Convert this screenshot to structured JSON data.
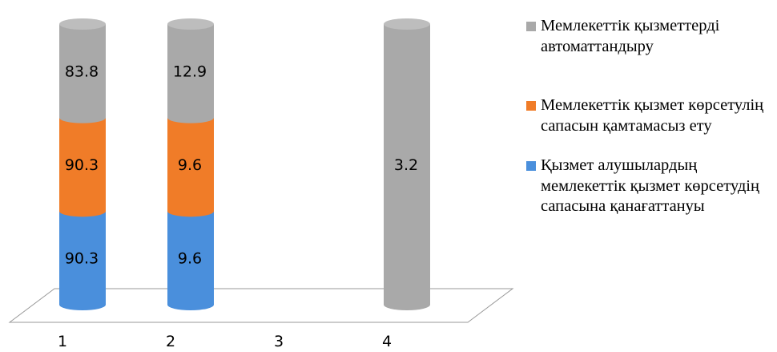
{
  "chart_data": {
    "type": "bar",
    "stacked": true,
    "categories": [
      "1",
      "2",
      "3",
      "4"
    ],
    "series": [
      {
        "name": "Қызмет алушылардың мемлекеттік қызмет көрсетудің сапасына қанағаттануы",
        "color": "#4a8fdc",
        "values": [
          90.3,
          9.6,
          null,
          null
        ]
      },
      {
        "name": "Мемлекеттік қызмет көрсетулің сапасын қамтамасыз ету",
        "color": "#f07c28",
        "values": [
          90.3,
          9.6,
          null,
          null
        ]
      },
      {
        "name": "Мемлекеттік қызметтерді автоматтандыру",
        "color": "#a9a9a9",
        "values": [
          83.8,
          12.9,
          null,
          3.2
        ]
      }
    ],
    "grid": false,
    "legend_position": "right"
  }
}
